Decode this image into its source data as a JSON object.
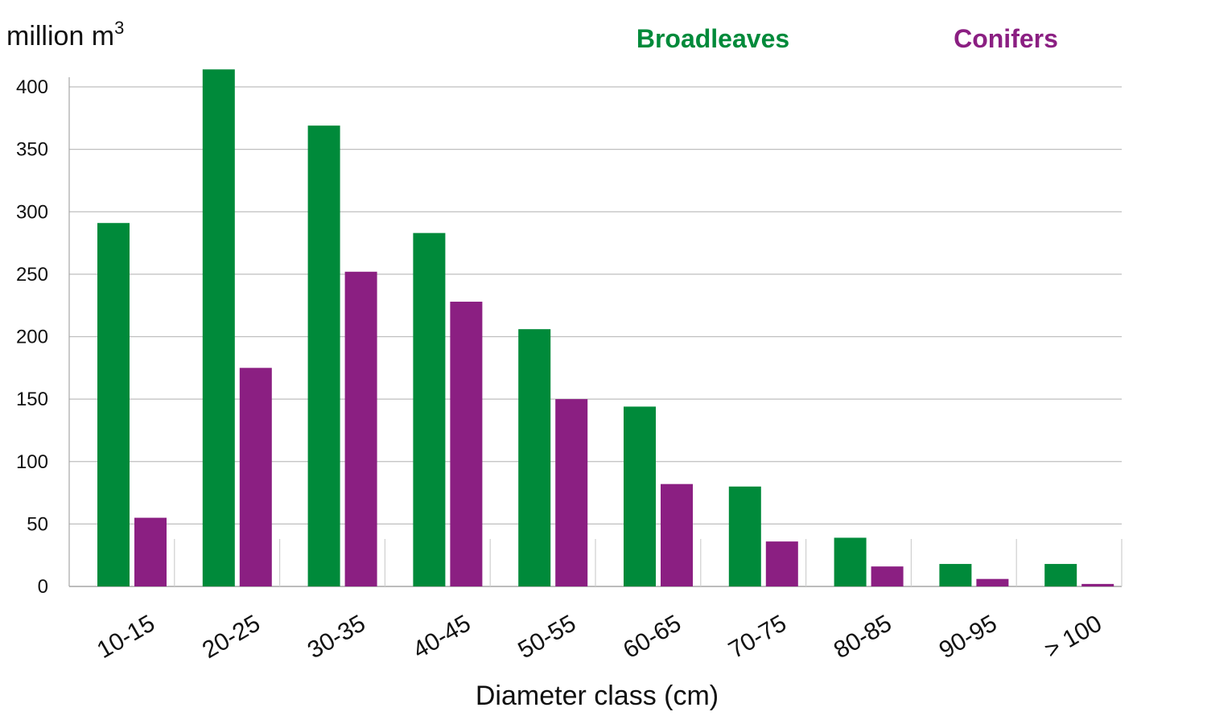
{
  "chart_data": {
    "type": "bar",
    "categories": [
      "10-15",
      "20-25",
      "30-35",
      "40-45",
      "50-55",
      "60-65",
      "70-75",
      "80-85",
      "90-95",
      "> 100"
    ],
    "series": [
      {
        "name": "Broadleaves",
        "color": "#008a3a",
        "values": [
          291,
          414,
          369,
          283,
          206,
          144,
          80,
          39,
          18,
          18
        ]
      },
      {
        "name": "Conifers",
        "color": "#8b1f82",
        "values": [
          55,
          175,
          252,
          228,
          150,
          82,
          36,
          16,
          6,
          2
        ]
      }
    ],
    "unit_label": {
      "base": "million m",
      "superscript": "3"
    },
    "xlabel": "Diameter class (cm)",
    "ylim": [
      0,
      400
    ],
    "yticks": [
      0,
      50,
      100,
      150,
      200,
      250,
      300,
      350,
      400
    ],
    "grid": true,
    "legend_position": "top"
  }
}
